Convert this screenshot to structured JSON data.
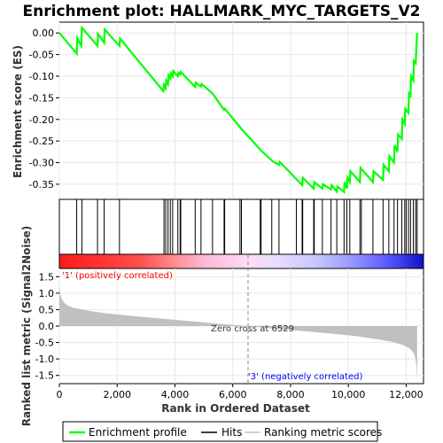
{
  "chart_data": [
    {
      "type": "line",
      "title": "Enrichment plot: HALLMARK_MYC_TARGETS_V2",
      "ylabel": "Enrichment score (ES)",
      "ylim": [
        -0.385,
        0.025
      ],
      "xlim": [
        0,
        12600
      ],
      "yticks": [
        "0.00",
        "-0.05",
        "-0.10",
        "-0.15",
        "-0.20",
        "-0.25",
        "-0.30",
        "-0.35"
      ],
      "ytick_values": [
        0.0,
        -0.05,
        -0.1,
        -0.15,
        -0.2,
        -0.25,
        -0.3,
        -0.35
      ],
      "grid": true,
      "series": [
        {
          "name": "Enrichment profile",
          "color": "#00ff00",
          "x": [
            0,
            600,
            620,
            760,
            780,
            1320,
            1340,
            1550,
            1570,
            2080,
            2100,
            3600,
            3620,
            3680,
            3700,
            3760,
            3780,
            3840,
            3860,
            3920,
            3940,
            4100,
            4120,
            4180,
            4200,
            4700,
            4720,
            4900,
            4920,
            5300,
            5700,
            5720,
            6250,
            6300,
            6950,
            6980,
            7350,
            7380,
            7600,
            7620,
            8200,
            8400,
            8420,
            8800,
            8820,
            9100,
            9120,
            9400,
            9420,
            9600,
            9620,
            9850,
            9870,
            9950,
            9970,
            10050,
            10070,
            10400,
            10420,
            10850,
            10870,
            11200,
            11220,
            11400,
            11420,
            11580,
            11600,
            11700,
            11720,
            11850,
            11870,
            11950,
            11970,
            12080,
            12100,
            12150,
            12170,
            12250,
            12270,
            12330,
            12350,
            12380
          ],
          "y": [
            0.0,
            -0.048,
            -0.012,
            -0.03,
            0.012,
            -0.03,
            -0.002,
            -0.023,
            0.008,
            -0.03,
            -0.013,
            -0.135,
            -0.12,
            -0.128,
            -0.11,
            -0.118,
            -0.098,
            -0.105,
            -0.093,
            -0.1,
            -0.088,
            -0.1,
            -0.092,
            -0.096,
            -0.09,
            -0.125,
            -0.115,
            -0.124,
            -0.118,
            -0.14,
            -0.178,
            -0.175,
            -0.218,
            -0.222,
            -0.27,
            -0.272,
            -0.295,
            -0.297,
            -0.305,
            -0.298,
            -0.338,
            -0.352,
            -0.335,
            -0.36,
            -0.345,
            -0.36,
            -0.35,
            -0.362,
            -0.352,
            -0.367,
            -0.355,
            -0.368,
            -0.345,
            -0.36,
            -0.335,
            -0.345,
            -0.32,
            -0.345,
            -0.312,
            -0.345,
            -0.32,
            -0.34,
            -0.305,
            -0.32,
            -0.285,
            -0.3,
            -0.26,
            -0.275,
            -0.235,
            -0.245,
            -0.2,
            -0.21,
            -0.175,
            -0.185,
            -0.14,
            -0.145,
            -0.1,
            -0.11,
            -0.065,
            -0.07,
            -0.04,
            0.0
          ]
        }
      ]
    },
    {
      "type": "scatter",
      "subtype": "hit-marks",
      "series": [
        {
          "name": "Hits",
          "x": [
            600,
            780,
            1320,
            1550,
            2080,
            3620,
            3680,
            3760,
            3840,
            3920,
            4100,
            4180,
            4200,
            4700,
            4900,
            5300,
            5700,
            5720,
            6250,
            6300,
            6950,
            6980,
            7350,
            7600,
            8200,
            8400,
            8420,
            8800,
            8820,
            9100,
            9400,
            9600,
            9850,
            9950,
            10050,
            10400,
            10450,
            10850,
            11200,
            11400,
            11580,
            11700,
            11850,
            11950,
            12000,
            12080,
            12150,
            12250,
            12330,
            12380
          ]
        }
      ]
    },
    {
      "type": "area",
      "subtype": "ranked-metric",
      "xlabel": "Rank in Ordered Dataset",
      "ylabel": "Ranked list metric (Signal2Noise)",
      "xlim": [
        0,
        12600
      ],
      "ylim": [
        -1.75,
        1.75
      ],
      "xticks": [
        "0",
        "2,000",
        "4,000",
        "6,000",
        "8,000",
        "10,000",
        "12,000"
      ],
      "xtick_values": [
        0,
        2000,
        4000,
        6000,
        8000,
        10000,
        12000
      ],
      "yticks": [
        "1.5",
        "1.0",
        "0.5",
        "0.0",
        "-0.5",
        "-1.0",
        "-1.5"
      ],
      "ytick_values": [
        1.5,
        1.0,
        0.5,
        0.0,
        -0.5,
        -1.0,
        -1.5
      ],
      "grid": true,
      "series": [
        {
          "name": "Ranking metric scores",
          "color": "#c0c0c0",
          "x": [
            0,
            50,
            150,
            300,
            500,
            800,
            1200,
            1700,
            2500,
            3500,
            4500,
            5500,
            6529,
            7500,
            8500,
            9500,
            10300,
            11000,
            11500,
            11900,
            12100,
            12200,
            12280,
            12320,
            12350,
            12380
          ],
          "y": [
            1.22,
            0.9,
            0.72,
            0.62,
            0.55,
            0.5,
            0.44,
            0.38,
            0.31,
            0.23,
            0.15,
            0.07,
            0.0,
            -0.08,
            -0.16,
            -0.24,
            -0.31,
            -0.4,
            -0.48,
            -0.58,
            -0.67,
            -0.75,
            -0.85,
            -1.0,
            -1.2,
            -1.65
          ]
        }
      ],
      "annotations": {
        "zero_cross": "Zero cross at 6529",
        "zero_cross_x": 6529,
        "positive": "'1' (positively correlated)",
        "negative": "'3' (negatively correlated)",
        "positive_color": "#ff0000",
        "negative_color": "#0000ff"
      }
    }
  ],
  "legend": {
    "items": [
      {
        "label": "Enrichment profile",
        "color": "#00ff00"
      },
      {
        "label": "Hits",
        "color": "#000000"
      },
      {
        "label": "Ranking metric scores",
        "color": "#c0c0c0"
      }
    ]
  },
  "colors": {
    "positive": "#ff0000",
    "negative": "#0000ff",
    "bar_gradient": [
      "#ff2020",
      "#ff6060",
      "#ffb0d0",
      "#ffd8f0",
      "#e0e0ff",
      "#b0b0ff",
      "#6060ff",
      "#2020ee"
    ]
  }
}
